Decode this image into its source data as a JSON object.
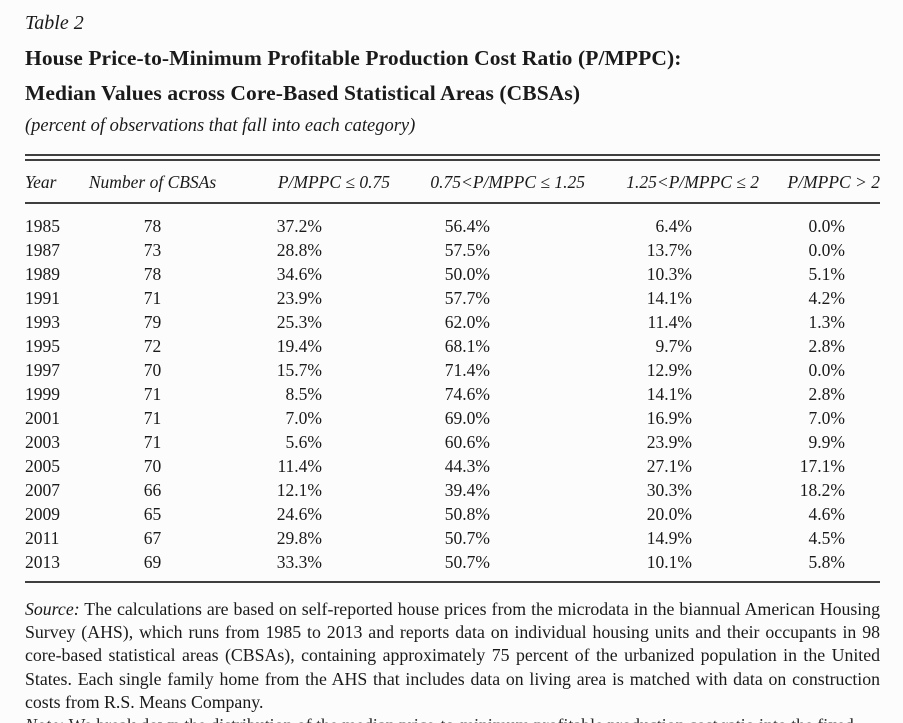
{
  "table_label": "Table 2",
  "title_line1": "House Price-to-Minimum Profitable Production Cost Ratio (P/MPPC):",
  "title_line2": "Median Values across Core-Based Statistical Areas (CBSAs)",
  "subtitle": "(percent of observations that fall into each category)",
  "columns": [
    "Year",
    "Number of CBSAs",
    "P/MPPC ≤ 0.75",
    "0.75<P/MPPC ≤ 1.25",
    "1.25<P/MPPC ≤ 2",
    "P/MPPC > 2"
  ],
  "rows": [
    [
      "1985",
      "78",
      "37.2%",
      "56.4%",
      "6.4%",
      "0.0%"
    ],
    [
      "1987",
      "73",
      "28.8%",
      "57.5%",
      "13.7%",
      "0.0%"
    ],
    [
      "1989",
      "78",
      "34.6%",
      "50.0%",
      "10.3%",
      "5.1%"
    ],
    [
      "1991",
      "71",
      "23.9%",
      "57.7%",
      "14.1%",
      "4.2%"
    ],
    [
      "1993",
      "79",
      "25.3%",
      "62.0%",
      "11.4%",
      "1.3%"
    ],
    [
      "1995",
      "72",
      "19.4%",
      "68.1%",
      "9.7%",
      "2.8%"
    ],
    [
      "1997",
      "70",
      "15.7%",
      "71.4%",
      "12.9%",
      "0.0%"
    ],
    [
      "1999",
      "71",
      "8.5%",
      "74.6%",
      "14.1%",
      "2.8%"
    ],
    [
      "2001",
      "71",
      "7.0%",
      "69.0%",
      "16.9%",
      "7.0%"
    ],
    [
      "2003",
      "71",
      "5.6%",
      "60.6%",
      "23.9%",
      "9.9%"
    ],
    [
      "2005",
      "70",
      "11.4%",
      "44.3%",
      "27.1%",
      "17.1%"
    ],
    [
      "2007",
      "66",
      "12.1%",
      "39.4%",
      "30.3%",
      "18.2%"
    ],
    [
      "2009",
      "65",
      "24.6%",
      "50.8%",
      "20.0%",
      "4.6%"
    ],
    [
      "2011",
      "67",
      "29.8%",
      "50.7%",
      "14.9%",
      "4.5%"
    ],
    [
      "2013",
      "69",
      "33.3%",
      "50.7%",
      "10.1%",
      "5.8%"
    ]
  ],
  "source_label": "Source:",
  "source_text": " The calculations are based on self-reported house prices from the microdata in the biannual American Housing Survey (AHS), which runs from 1985 to 2013 and reports data on individual housing units and their occupants in 98 core-based statistical areas (CBSAs), containing approximately 75 percent of the urbanized population in the United States. Each single family home from the AHS that includes data on living area is matched with data on construction costs from R.S. Means Company.",
  "note_label": "Note:",
  "note_text_clipped": " We break down the distribution of the median price-to-minimum profitable production cost ratio into the fixed bins used in the columns."
}
